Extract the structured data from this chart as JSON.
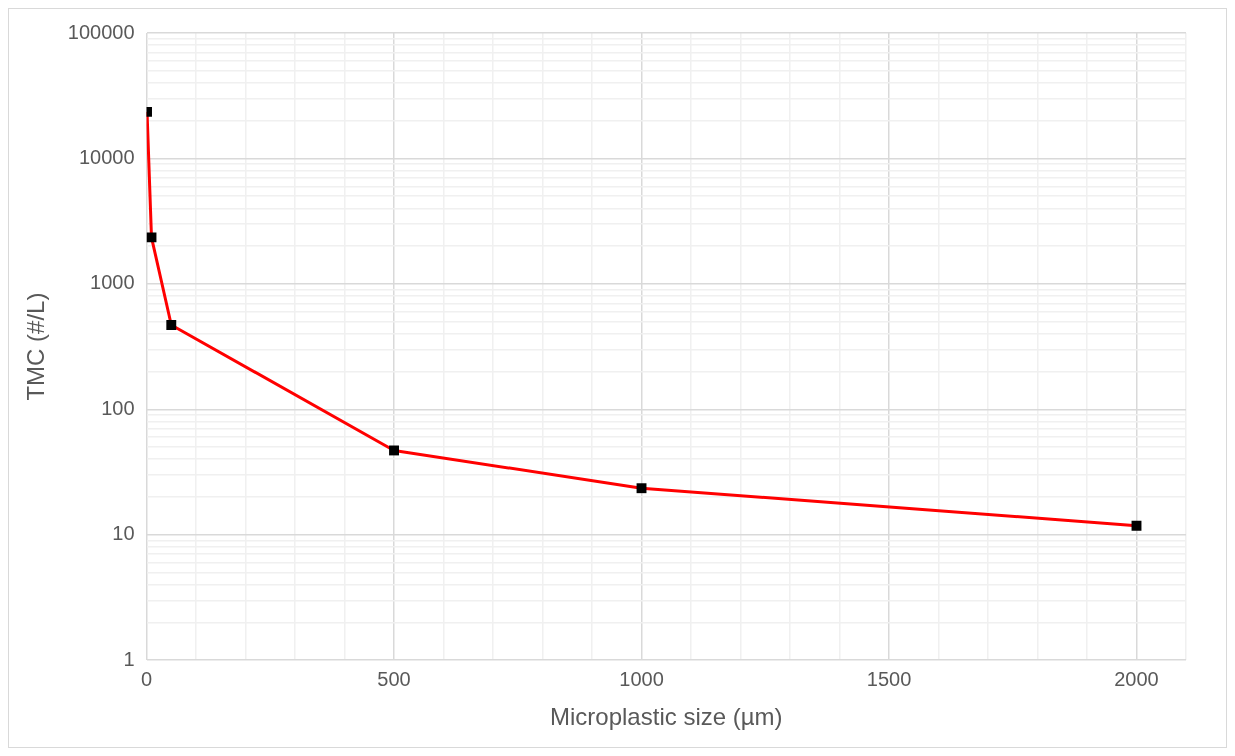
{
  "chart_data": {
    "type": "line",
    "xlabel": "Microplastic size (µm)",
    "ylabel": "TMC (#/L)",
    "x": [
      1,
      10,
      50,
      500,
      1000,
      2000
    ],
    "series": [
      {
        "color": "#ff0000",
        "values": [
          23500,
          2350,
          470,
          47,
          23.5,
          11.8
        ]
      }
    ],
    "marker": "square",
    "line_style": "solid",
    "log": "y",
    "grid": true,
    "legend": false,
    "xlim": [
      0,
      2100
    ],
    "xticks": [
      0,
      {
        "value": 100,
        "label": null
      },
      {
        "value": 200,
        "label": null
      },
      {
        "value": 300,
        "label": null
      },
      {
        "value": 400,
        "label": null
      },
      500,
      {
        "value": 600,
        "label": null
      },
      {
        "value": 700,
        "label": null
      },
      {
        "value": 800,
        "label": null
      },
      {
        "value": 900,
        "label": null
      },
      1000,
      {
        "value": 1100,
        "label": null
      },
      {
        "value": 1200,
        "label": null
      },
      {
        "value": 1300,
        "label": null
      },
      {
        "value": 1400,
        "label": null
      },
      1500,
      {
        "value": 1600,
        "label": null
      },
      {
        "value": 1700,
        "label": null
      },
      {
        "value": 1800,
        "label": null
      },
      {
        "value": 1900,
        "label": null
      },
      2000,
      {
        "value": 2100,
        "label": null
      }
    ],
    "ylim": [
      1,
      100000
    ],
    "yticks": [
      1,
      {
        "value": 2,
        "label": null
      },
      {
        "value": 3,
        "label": null
      },
      {
        "value": 4,
        "label": null
      },
      {
        "value": 5,
        "label": null
      },
      {
        "value": 6,
        "label": null
      },
      {
        "value": 7,
        "label": null
      },
      {
        "value": 8,
        "label": null
      },
      {
        "value": 9,
        "label": null
      },
      10,
      {
        "value": 20,
        "label": null
      },
      {
        "value": 30,
        "label": null
      },
      {
        "value": 40,
        "label": null
      },
      {
        "value": 50,
        "label": null
      },
      {
        "value": 60,
        "label": null
      },
      {
        "value": 70,
        "label": null
      },
      {
        "value": 80,
        "label": null
      },
      {
        "value": 90,
        "label": null
      },
      100,
      {
        "value": 200,
        "label": null
      },
      {
        "value": 300,
        "label": null
      },
      {
        "value": 400,
        "label": null
      },
      {
        "value": 500,
        "label": null
      },
      {
        "value": 600,
        "label": null
      },
      {
        "value": 700,
        "label": null
      },
      {
        "value": 800,
        "label": null
      },
      {
        "value": 900,
        "label": null
      },
      1000,
      {
        "value": 2000,
        "label": null
      },
      {
        "value": 3000,
        "label": null
      },
      {
        "value": 4000,
        "label": null
      },
      {
        "value": 5000,
        "label": null
      },
      {
        "value": 6000,
        "label": null
      },
      {
        "value": 7000,
        "label": null
      },
      {
        "value": 8000,
        "label": null
      },
      {
        "value": 9000,
        "label": null
      },
      10000,
      {
        "value": 20000,
        "label": null
      },
      {
        "value": 30000,
        "label": null
      },
      {
        "value": 40000,
        "label": null
      },
      {
        "value": 50000,
        "label": null
      },
      {
        "value": 60000,
        "label": null
      },
      {
        "value": 70000,
        "label": null
      },
      {
        "value": 80000,
        "label": null
      },
      {
        "value": 90000,
        "label": null
      },
      100000
    ]
  }
}
